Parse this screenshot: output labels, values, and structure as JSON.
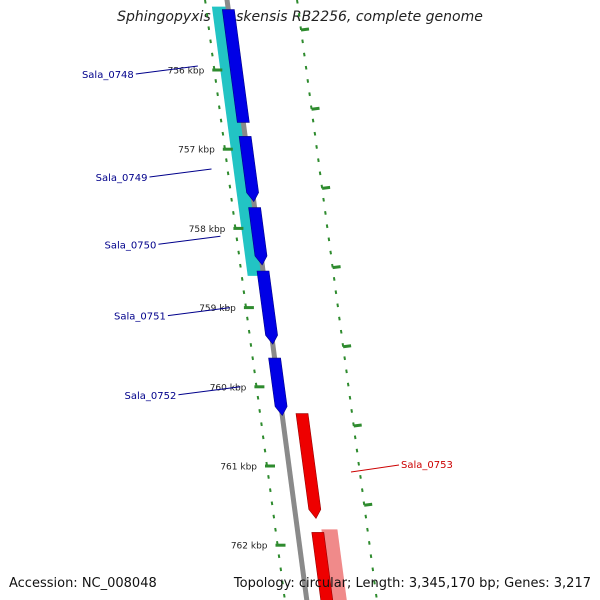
{
  "title": "Sphingopyxis alaskensis RB2256, complete genome",
  "footer": {
    "accession": "Accession: NC_008048",
    "summary": "Topology: circular; Length: 3,345,170 bp; Genes: 3,217"
  },
  "colors": {
    "backbone": "#8a8a8a",
    "forward_cds": "#0000e6",
    "forward_highlight": "#22c4c4",
    "reverse_cds": "#ee0000",
    "reverse_highlight": "#f08a8a",
    "tick": "#2e8b2e",
    "forward_label": "#00008b",
    "reverse_label": "#cc0000"
  },
  "scale": {
    "unit": "kbp",
    "ticks": [
      {
        "kbp": 756,
        "label": "756 kbp"
      },
      {
        "kbp": 757,
        "label": "757 kbp"
      },
      {
        "kbp": 758,
        "label": "758 kbp"
      },
      {
        "kbp": 759,
        "label": "759 kbp"
      },
      {
        "kbp": 760,
        "label": "760 kbp"
      },
      {
        "kbp": 761,
        "label": "761 kbp"
      },
      {
        "kbp": 762,
        "label": "762 kbp"
      }
    ]
  },
  "genes": [
    {
      "label": "Sala_0748",
      "strand": "+",
      "start_kbp": 755.2,
      "end_kbp": 756.7,
      "end_arrow": false
    },
    {
      "label": "Sala_0749",
      "strand": "+",
      "start_kbp": 756.8,
      "end_kbp": 757.7,
      "end_arrow": true
    },
    {
      "label": "Sala_0750",
      "strand": "+",
      "start_kbp": 757.7,
      "end_kbp": 758.5,
      "end_arrow": true
    },
    {
      "label": "Sala_0751",
      "strand": "+",
      "start_kbp": 758.5,
      "end_kbp": 759.5,
      "end_arrow": true
    },
    {
      "label": "Sala_0752",
      "strand": "+",
      "start_kbp": 759.6,
      "end_kbp": 760.4,
      "end_arrow": true
    },
    {
      "label": "Sala_0753",
      "strand": "-",
      "start_kbp": 760.3,
      "end_kbp": 761.7,
      "end_arrow": true
    },
    {
      "label": "",
      "strand": "-",
      "start_kbp": 761.8,
      "end_kbp": 762.8,
      "end_arrow": false
    }
  ],
  "highlights": [
    {
      "strand": "+",
      "start_kbp": 755.2,
      "end_kbp": 758.6
    },
    {
      "strand": "-",
      "start_kbp": 761.8,
      "end_kbp": 762.8
    }
  ]
}
